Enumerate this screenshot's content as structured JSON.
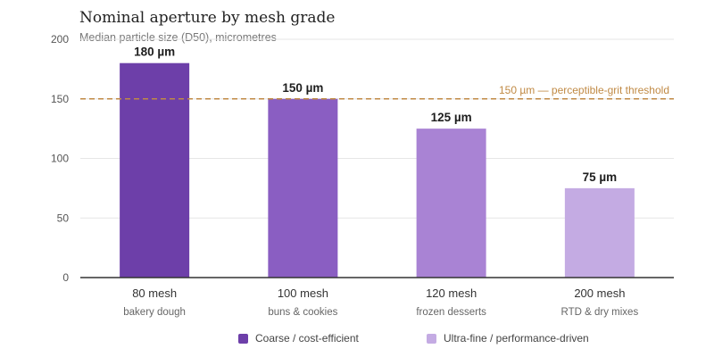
{
  "chart_data": {
    "type": "bar",
    "title": "Nominal aperture by mesh grade",
    "subtitle": "Median particle size (D50), micrometres",
    "xlabel": "",
    "ylabel": "",
    "ylim": [
      0,
      200
    ],
    "yticks": [
      0,
      50,
      100,
      150,
      200
    ],
    "grid": true,
    "categories": [
      "80 mesh",
      "100 mesh",
      "120 mesh",
      "200 mesh"
    ],
    "category_sublabels": [
      "bakery dough",
      "buns & cookies",
      "frozen desserts",
      "RTD & dry mixes"
    ],
    "values": [
      180,
      150,
      125,
      75
    ],
    "data_labels": [
      "180 µm",
      "150 µm",
      "125 µm",
      "75 µm"
    ],
    "bar_colors": [
      "#6d3fa9",
      "#8a5ec2",
      "#a983d4",
      "#c4abe3"
    ],
    "reference_line": {
      "value": 150,
      "label": "150 µm — perceptible-grit threshold",
      "color": "#c08a45"
    },
    "legend": [
      {
        "label": "Coarse / cost-efficient",
        "color": "#6d3fa9"
      },
      {
        "label": "Ultra-fine / performance-driven",
        "color": "#c4abe3"
      }
    ],
    "legend_position": "bottom"
  }
}
